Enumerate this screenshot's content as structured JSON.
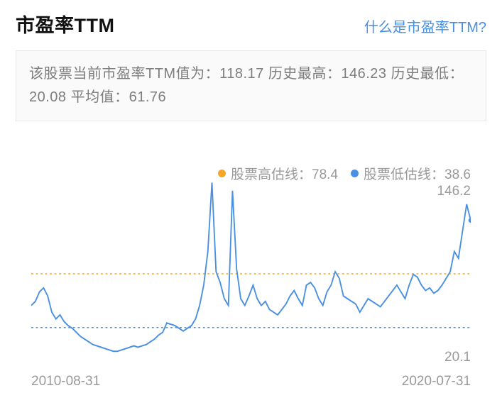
{
  "header": {
    "title": "市盈率TTM",
    "help_link": "什么是市盈率TTM?"
  },
  "summary": {
    "text": "该股票当前市盈率TTM值为：118.17 历史最高：146.23 历史最低：20.08 平均值：61.76",
    "current": 118.17,
    "historical_high": 146.23,
    "historical_low": 20.08,
    "average": 61.76
  },
  "legend": {
    "high_line": {
      "label": "股票高估线：78.4",
      "value": 78.4,
      "color": "#f5a623"
    },
    "low_line": {
      "label": "股票低估线：38.6",
      "value": 38.6,
      "color": "#4a90e2"
    }
  },
  "chart": {
    "type": "line",
    "background_color": "#ffffff",
    "line_color": "#4a90e2",
    "line_width": 2,
    "high_guide": {
      "value": 78.4,
      "color": "#f5a623",
      "dash": "3,4",
      "width": 1.5
    },
    "low_guide": {
      "value": 38.6,
      "color": "#4a90e2",
      "dash": "3,4",
      "width": 1.5
    },
    "y_max_label": "146.2",
    "y_min_label": "20.1",
    "ylim": [
      20.08,
      146.23
    ],
    "x_start_label": "2010-08-31",
    "x_end_label": "2020-07-31",
    "x_start": "2010-08-31",
    "x_end": "2020-07-31",
    "last_point_marker": {
      "color": "#4a90e2",
      "radius": 3.5
    },
    "series": [
      55,
      58,
      65,
      68,
      62,
      50,
      45,
      48,
      43,
      40,
      38,
      35,
      32,
      30,
      28,
      26,
      25,
      24,
      23,
      22,
      21,
      21,
      22,
      23,
      24,
      25,
      24,
      25,
      26,
      28,
      30,
      33,
      35,
      42,
      41,
      40,
      38,
      36,
      38,
      40,
      45,
      55,
      70,
      95,
      146,
      80,
      72,
      60,
      55,
      140,
      82,
      60,
      55,
      62,
      70,
      60,
      55,
      58,
      52,
      50,
      48,
      52,
      56,
      62,
      66,
      60,
      55,
      70,
      72,
      68,
      60,
      55,
      65,
      70,
      80,
      75,
      62,
      60,
      58,
      56,
      50,
      55,
      60,
      58,
      56,
      54,
      58,
      62,
      66,
      70,
      65,
      60,
      70,
      78,
      76,
      70,
      66,
      68,
      64,
      66,
      70,
      75,
      80,
      95,
      90,
      110,
      130,
      118
    ],
    "label_fontsize": 19,
    "label_color": "#9a9a9a"
  }
}
